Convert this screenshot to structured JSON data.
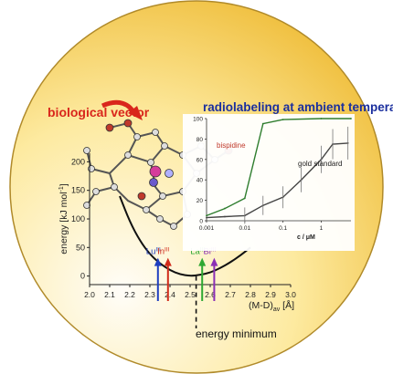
{
  "title": "radiolabeling at ambient temperature",
  "vector_label": "biological vector",
  "energy_minimum_label": "energy minimum",
  "energy_plot": {
    "ylabel": "energy [kJ mol",
    "ylabel_sup": "-1",
    "ylabel_end": "]",
    "xlabel": "(M-D)",
    "xlabel_sub": "av",
    "xlabel_unit": " [Å]",
    "yticks": [
      "0",
      "50",
      "100",
      "150",
      "200"
    ],
    "xticks": [
      "2.0",
      "2.1",
      "2.2",
      "2.3",
      "2.4",
      "2.5",
      "2.6",
      "2.7",
      "2.8",
      "2.9",
      "3.0"
    ],
    "xlim": [
      2.0,
      3.0
    ],
    "ylim": [
      -15,
      215
    ],
    "curve": {
      "x": [
        2.15,
        2.2,
        2.25,
        2.3,
        2.35,
        2.4,
        2.45,
        2.5,
        2.55,
        2.6,
        2.65,
        2.7,
        2.75,
        2.8
      ],
      "y": [
        140,
        95,
        62,
        38,
        22,
        10,
        3,
        0,
        2,
        6,
        14,
        24,
        36,
        50
      ]
    },
    "minimum_x": 2.53,
    "arrows": [
      {
        "label": "Lu",
        "sup": "III",
        "x": 2.34,
        "color": "#1f3fbf"
      },
      {
        "label": "In",
        "sup": "III",
        "x": 2.39,
        "color": "#d02a1a"
      },
      {
        "label": "La",
        "sup": "III",
        "x": 2.56,
        "color": "#2fa833"
      },
      {
        "label": "Bi",
        "sup": "III",
        "x": 2.62,
        "color": "#8b2fb5"
      }
    ]
  },
  "chart_data": {
    "type": "line",
    "xscale": "log",
    "xlabel": "c / μM",
    "ylabel": "",
    "xticks": [
      "0.001",
      "0.01",
      "0.1",
      "1"
    ],
    "yticks": [
      "0",
      "20",
      "40",
      "60",
      "80",
      "100"
    ],
    "xlim": [
      0.001,
      6
    ],
    "ylim": [
      0,
      100
    ],
    "series": [
      {
        "name": "bispidine",
        "color": "#2e7d2e",
        "x": [
          0.001,
          0.003,
          0.01,
          0.03,
          0.1,
          1,
          6
        ],
        "y": [
          5,
          12,
          22,
          95,
          99,
          100,
          100
        ]
      },
      {
        "name": "gold standard",
        "color": "#444444",
        "x": [
          0.001,
          0.003,
          0.01,
          0.03,
          0.1,
          0.3,
          1,
          2,
          5
        ],
        "y": [
          3,
          4,
          5,
          15,
          23,
          40,
          60,
          75,
          76
        ]
      }
    ]
  }
}
